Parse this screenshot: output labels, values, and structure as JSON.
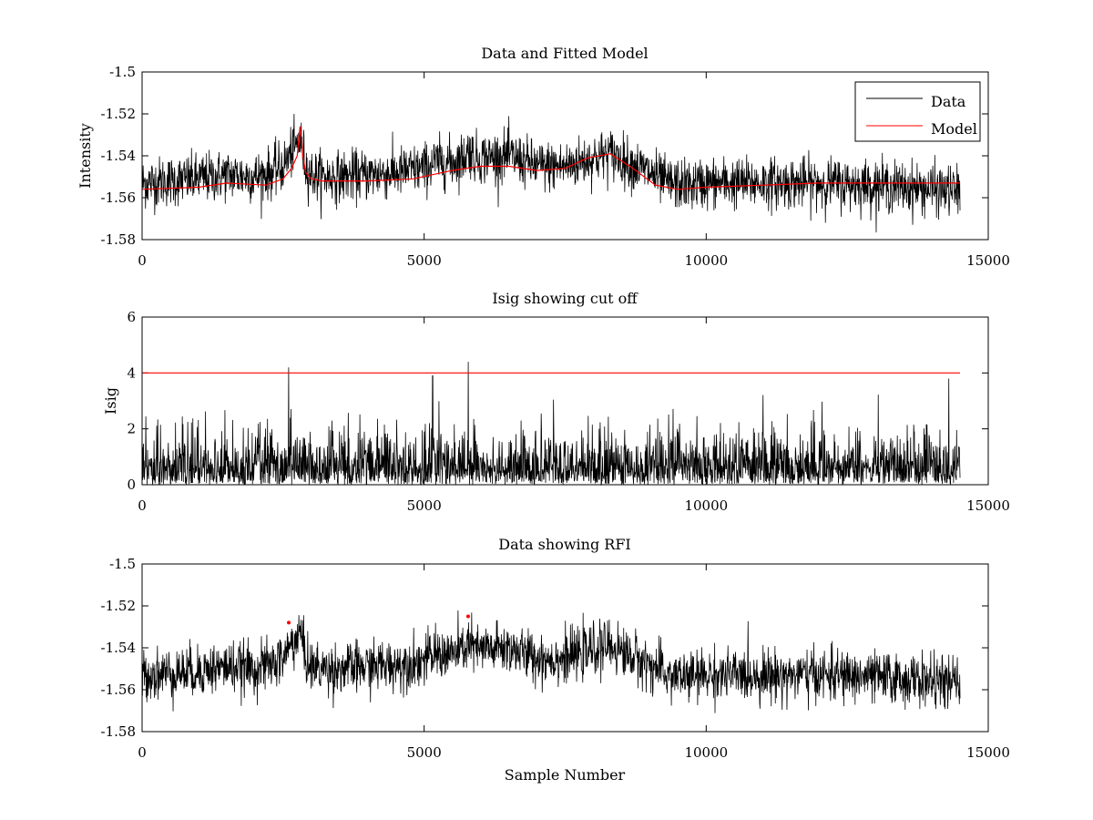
{
  "figure": {
    "background": "#ffffff"
  },
  "chart_data": [
    {
      "type": "line",
      "title": "Data and Fitted Model",
      "xlabel": "",
      "ylabel": "Intensity",
      "xlim": [
        0,
        15000
      ],
      "ylim": [
        -1.58,
        -1.5
      ],
      "xticks": [
        0,
        5000,
        10000,
        15000
      ],
      "yticks": [
        -1.58,
        -1.56,
        -1.54,
        -1.52,
        -1.5
      ],
      "xticklabels": [
        "0",
        "5000",
        "10000",
        "15000"
      ],
      "yticklabels": [
        "-1.58",
        "-1.56",
        "-1.54",
        "-1.52",
        "-1.5"
      ],
      "grid": false,
      "legend": {
        "placement": "top-right",
        "entries": [
          "Data",
          "Model"
        ]
      },
      "series": [
        {
          "name": "Data",
          "color": "#000000",
          "kind": "noisy-band",
          "n_samples": 14500,
          "noise_sd": 0.006,
          "x": [
            0,
            500,
            1000,
            1500,
            2000,
            2300,
            2500,
            2650,
            2750,
            2800,
            2850,
            2900,
            3000,
            3200,
            3500,
            4000,
            4500,
            5000,
            5200,
            5500,
            5700,
            5800,
            5900,
            6000,
            6500,
            7000,
            7500,
            8000,
            8300,
            8600,
            9000,
            9300,
            9700,
            10000,
            11000,
            12000,
            13000,
            14000,
            14500
          ],
          "y": [
            -1.553,
            -1.552,
            -1.551,
            -1.549,
            -1.55,
            -1.548,
            -1.545,
            -1.538,
            -1.535,
            -1.532,
            -1.538,
            -1.545,
            -1.549,
            -1.55,
            -1.55,
            -1.549,
            -1.548,
            -1.546,
            -1.543,
            -1.543,
            -1.541,
            -1.537,
            -1.541,
            -1.541,
            -1.54,
            -1.545,
            -1.545,
            -1.541,
            -1.539,
            -1.543,
            -1.548,
            -1.553,
            -1.554,
            -1.553,
            -1.553,
            -1.553,
            -1.554,
            -1.556,
            -1.557
          ]
        },
        {
          "name": "Model",
          "color": "#ff0000",
          "x": [
            0,
            1000,
            1500,
            2200,
            2500,
            2650,
            2750,
            2800,
            2850,
            2900,
            3000,
            3200,
            4000,
            4800,
            5500,
            6000,
            6500,
            7000,
            7500,
            7900,
            8300,
            8700,
            9100,
            9500,
            10000,
            11000,
            12000,
            13000,
            14500
          ],
          "y": [
            -1.556,
            -1.555,
            -1.553,
            -1.554,
            -1.551,
            -1.546,
            -1.54,
            -1.526,
            -1.54,
            -1.548,
            -1.551,
            -1.552,
            -1.552,
            -1.551,
            -1.547,
            -1.545,
            -1.545,
            -1.547,
            -1.546,
            -1.541,
            -1.539,
            -1.546,
            -1.554,
            -1.556,
            -1.555,
            -1.554,
            -1.553,
            -1.553,
            -1.553
          ]
        }
      ]
    },
    {
      "type": "line",
      "title": "Isig showing cut off",
      "xlabel": "",
      "ylabel": "Isig",
      "xlim": [
        0,
        15000
      ],
      "ylim": [
        0,
        6
      ],
      "xticks": [
        0,
        5000,
        10000,
        15000
      ],
      "yticks": [
        0,
        2,
        4,
        6
      ],
      "xticklabels": [
        "0",
        "5000",
        "10000",
        "15000"
      ],
      "yticklabels": [
        "0",
        "2",
        "4",
        "6"
      ],
      "grid": false,
      "series": [
        {
          "color": "#000000",
          "kind": "noisy-positive",
          "n_samples": 14500,
          "typical_max": 2.5,
          "peaks": [
            {
              "x": 2600,
              "y": 4.2
            },
            {
              "x": 5150,
              "y": 3.9
            },
            {
              "x": 5780,
              "y": 4.4
            },
            {
              "x": 14300,
              "y": 3.8
            }
          ]
        },
        {
          "color": "#ff0000",
          "kind": "cutoff",
          "x": [
            0,
            14500
          ],
          "y": [
            4,
            4
          ]
        }
      ]
    },
    {
      "type": "line",
      "title": "Data showing RFI",
      "xlabel": "Sample Number",
      "ylabel": "",
      "xlim": [
        0,
        15000
      ],
      "ylim": [
        -1.58,
        -1.5
      ],
      "xticks": [
        0,
        5000,
        10000,
        15000
      ],
      "yticks": [
        -1.58,
        -1.56,
        -1.54,
        -1.52,
        -1.5
      ],
      "xticklabels": [
        "0",
        "5000",
        "10000",
        "15000"
      ],
      "yticklabels": [
        "-1.58",
        "-1.56",
        "-1.54",
        "-1.52",
        "-1.5"
      ],
      "grid": false,
      "series": [
        {
          "color": "#000000",
          "kind": "noisy-band",
          "n_samples": 14500,
          "noise_sd": 0.006,
          "x": [
            0,
            500,
            1000,
            1500,
            2000,
            2300,
            2500,
            2650,
            2750,
            2800,
            2850,
            2900,
            3000,
            3200,
            3500,
            4000,
            4500,
            5000,
            5200,
            5500,
            5700,
            5800,
            5900,
            6000,
            6500,
            7000,
            7500,
            8000,
            8300,
            8600,
            9000,
            9300,
            9700,
            10000,
            11000,
            12000,
            13000,
            14000,
            14500
          ],
          "y": [
            -1.553,
            -1.552,
            -1.551,
            -1.549,
            -1.55,
            -1.548,
            -1.545,
            -1.538,
            -1.535,
            -1.532,
            -1.538,
            -1.545,
            -1.549,
            -1.55,
            -1.55,
            -1.549,
            -1.548,
            -1.546,
            -1.543,
            -1.543,
            -1.541,
            -1.537,
            -1.541,
            -1.541,
            -1.54,
            -1.545,
            -1.545,
            -1.541,
            -1.539,
            -1.543,
            -1.548,
            -1.553,
            -1.554,
            -1.553,
            -1.553,
            -1.553,
            -1.554,
            -1.556,
            -1.557
          ]
        },
        {
          "color": "#ff0000",
          "kind": "markers",
          "x": [
            2600,
            5780
          ],
          "y": [
            -1.528,
            -1.525
          ]
        }
      ]
    }
  ]
}
